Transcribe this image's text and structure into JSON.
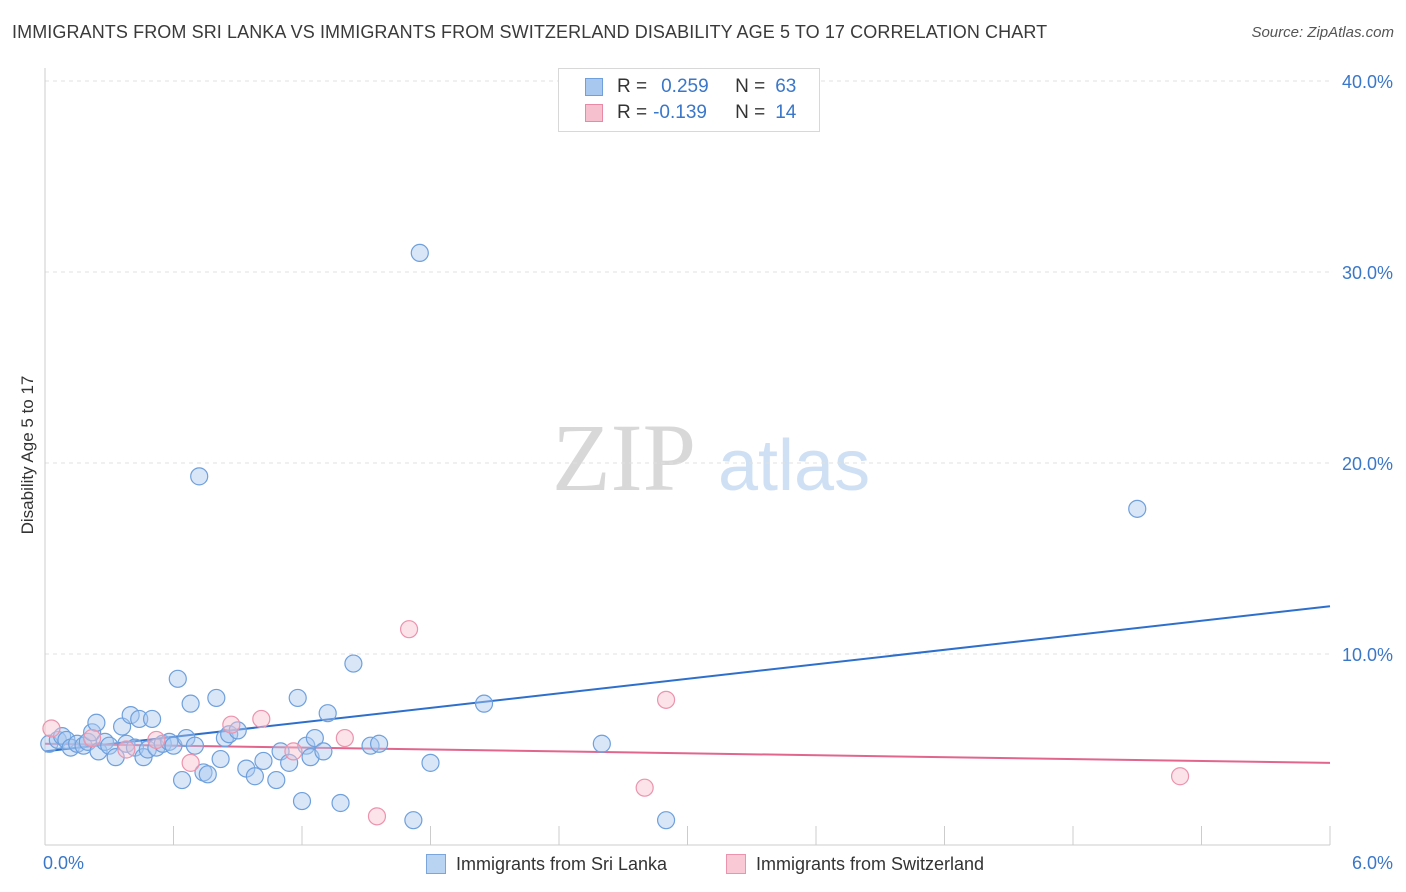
{
  "title": "IMMIGRANTS FROM SRI LANKA VS IMMIGRANTS FROM SWITZERLAND DISABILITY AGE 5 TO 17 CORRELATION CHART",
  "source": "Source: ZipAtlas.com",
  "watermark": {
    "zip": "ZIP",
    "atlas": "atlas"
  },
  "legend": {
    "r_label": "R =",
    "n_label": "N =",
    "rows": [
      {
        "r": "0.259",
        "n": "63",
        "color": "#a9c8f0",
        "stroke": "#6fa0dc"
      },
      {
        "r": "-0.139",
        "n": "14",
        "color": "#f7c0cf",
        "stroke": "#e88aa6"
      }
    ]
  },
  "bottom_legend": [
    {
      "label": "Immigrants from Sri Lanka",
      "color": "#b9d3f3",
      "stroke": "#7aa6dd"
    },
    {
      "label": "Immigrants from Switzerland",
      "color": "#f9c9d6",
      "stroke": "#ec93ad"
    }
  ],
  "chart_data": {
    "type": "scatter",
    "ylabel": "Disability Age 5 to 17",
    "xlim": [
      0,
      6
    ],
    "ylim": [
      0,
      40
    ],
    "x_tick_labels": [
      "0.0%",
      "6.0%"
    ],
    "y_ticks": [
      10,
      20,
      30,
      40
    ],
    "y_tick_labels": [
      "10.0%",
      "20.0%",
      "30.0%",
      "40.0%"
    ],
    "grid": true,
    "legend_position": "top-center",
    "series": [
      {
        "name": "Immigrants from Sri Lanka",
        "color": "#6fa0dc",
        "fill": "rgba(169,200,240,0.45)",
        "trend": {
          "x0": 0,
          "y0": 4.9,
          "x1": 6,
          "y1": 12.5,
          "color": "#2f6fcc"
        },
        "points": [
          [
            0.02,
            5.3
          ],
          [
            0.06,
            5.5
          ],
          [
            0.08,
            5.7
          ],
          [
            0.1,
            5.5
          ],
          [
            0.12,
            5.1
          ],
          [
            0.15,
            5.3
          ],
          [
            0.18,
            5.2
          ],
          [
            0.2,
            5.4
          ],
          [
            0.22,
            5.9
          ],
          [
            0.24,
            6.4
          ],
          [
            0.25,
            4.9
          ],
          [
            0.28,
            5.4
          ],
          [
            0.3,
            5.2
          ],
          [
            0.33,
            4.6
          ],
          [
            0.36,
            6.2
          ],
          [
            0.38,
            5.3
          ],
          [
            0.4,
            6.8
          ],
          [
            0.42,
            5.1
          ],
          [
            0.44,
            6.6
          ],
          [
            0.46,
            4.6
          ],
          [
            0.48,
            5.0
          ],
          [
            0.5,
            6.6
          ],
          [
            0.52,
            5.1
          ],
          [
            0.55,
            5.3
          ],
          [
            0.58,
            5.4
          ],
          [
            0.6,
            5.2
          ],
          [
            0.62,
            8.7
          ],
          [
            0.64,
            3.4
          ],
          [
            0.66,
            5.6
          ],
          [
            0.68,
            7.4
          ],
          [
            0.7,
            5.2
          ],
          [
            0.72,
            19.3
          ],
          [
            0.74,
            3.8
          ],
          [
            0.76,
            3.7
          ],
          [
            0.8,
            7.7
          ],
          [
            0.82,
            4.5
          ],
          [
            0.84,
            5.6
          ],
          [
            0.86,
            5.8
          ],
          [
            0.9,
            6.0
          ],
          [
            0.94,
            4.0
          ],
          [
            0.98,
            3.6
          ],
          [
            1.02,
            4.4
          ],
          [
            1.08,
            3.4
          ],
          [
            1.1,
            4.9
          ],
          [
            1.14,
            4.3
          ],
          [
            1.18,
            7.7
          ],
          [
            1.2,
            2.3
          ],
          [
            1.22,
            5.2
          ],
          [
            1.24,
            4.6
          ],
          [
            1.26,
            5.6
          ],
          [
            1.3,
            4.9
          ],
          [
            1.32,
            6.9
          ],
          [
            1.38,
            2.2
          ],
          [
            1.44,
            9.5
          ],
          [
            1.52,
            5.2
          ],
          [
            1.56,
            5.3
          ],
          [
            1.72,
            1.3
          ],
          [
            1.75,
            31.0
          ],
          [
            1.8,
            4.3
          ],
          [
            2.05,
            7.4
          ],
          [
            2.6,
            5.3
          ],
          [
            2.9,
            1.3
          ],
          [
            5.1,
            17.6
          ]
        ]
      },
      {
        "name": "Immigrants from Switzerland",
        "color": "#ec93ad",
        "fill": "rgba(247,192,207,0.45)",
        "trend": {
          "x0": 0,
          "y0": 5.3,
          "x1": 6,
          "y1": 4.3,
          "color": "#e0668e"
        },
        "points": [
          [
            0.03,
            6.1
          ],
          [
            0.22,
            5.6
          ],
          [
            0.38,
            5.0
          ],
          [
            0.52,
            5.5
          ],
          [
            0.68,
            4.3
          ],
          [
            0.87,
            6.3
          ],
          [
            1.01,
            6.6
          ],
          [
            1.16,
            4.9
          ],
          [
            1.4,
            5.6
          ],
          [
            1.55,
            1.5
          ],
          [
            1.7,
            11.3
          ],
          [
            2.8,
            3.0
          ],
          [
            2.9,
            7.6
          ],
          [
            5.3,
            3.6
          ]
        ]
      }
    ]
  }
}
